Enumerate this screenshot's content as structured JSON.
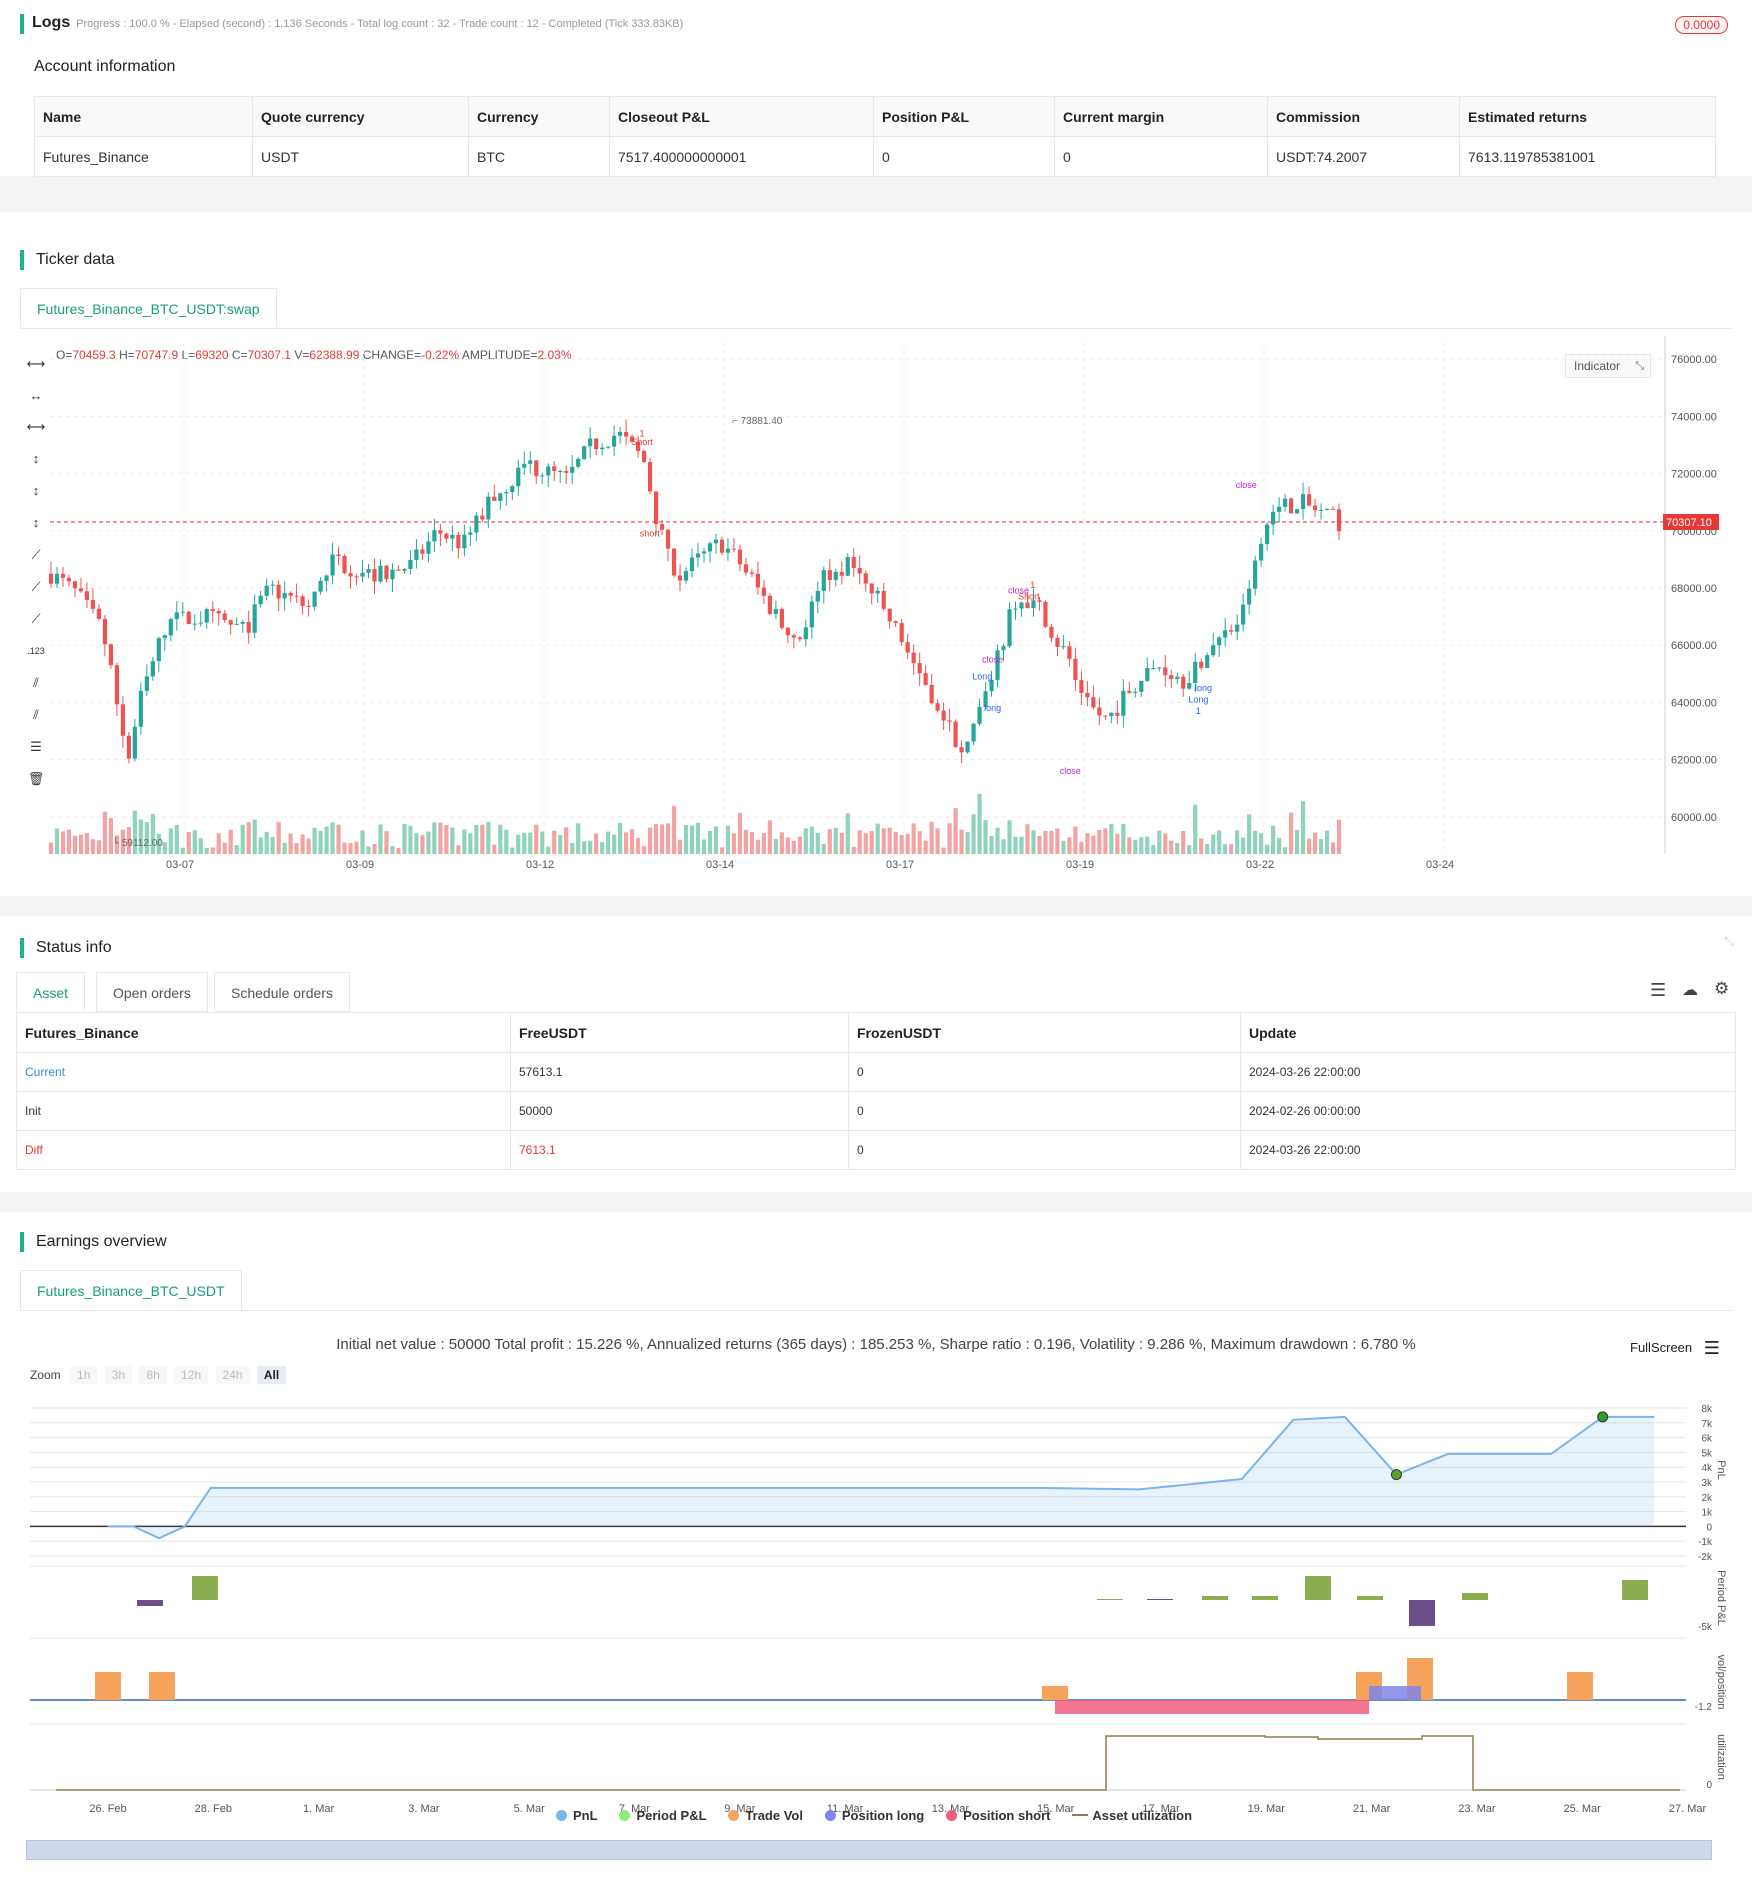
{
  "logs": {
    "title": "Logs",
    "summary": "Progress : 100.0 % - Elapsed (second) : 1.136  Seconds - Total log count : 32 - Trade count : 12 - Completed (Tick 333.83KB)",
    "badge": "0.0000"
  },
  "account": {
    "title": "Account information",
    "headers": [
      "Name",
      "Quote currency",
      "Currency",
      "Closeout P&L",
      "Position P&L",
      "Current margin",
      "Commission",
      "Estimated returns"
    ],
    "row": [
      "Futures_Binance",
      "USDT",
      "BTC",
      "7517.400000000001",
      "0",
      "0",
      "USDT:74.2007",
      "7613.119785381001"
    ]
  },
  "ticker": {
    "title": "Ticker data",
    "tab": "Futures_Binance_BTC_USDT:swap",
    "ohlc": {
      "o_label": "O=",
      "o": "70459.3",
      "h_label": "H=",
      "h": "70747.9",
      "l_label": "L=",
      "l": "69320",
      "c_label": "C=",
      "c": "70307.1",
      "v_label": "V=",
      "v": "62388.99",
      "change_label": "CHANGE=",
      "change": "-0.22%",
      "amp_label": "AMPLITUDE=",
      "amp": "2.03%"
    },
    "indicator_btn": "Indicator",
    "last_price": "70307.10",
    "high_mark": "73881.40",
    "low_mark": "59112.00",
    "colors": {
      "up": "#26a69a",
      "down": "#ef5350",
      "up_vol": "#8fd3bd",
      "down_vol": "#f3a3a3"
    },
    "tools": [
      "horizontal-line-icon",
      "horizontal-ray-icon",
      "horizontal-segment-icon",
      "vertical-line-icon",
      "vertical-ray-icon",
      "vertical-segment-icon",
      "trend-line-icon",
      "ray-icon",
      "segment-icon",
      "price-label-icon",
      "parallel-channel-icon",
      "fib-channel-icon",
      "fib-levels-icon",
      "trash-icon"
    ],
    "chart_data": {
      "type": "candlestick",
      "y_ticks": [
        "76000.00",
        "74000.00",
        "72000.00",
        "70000.00",
        "68000.00",
        "66000.00",
        "64000.00",
        "62000.00",
        "60000.00"
      ],
      "y_range": [
        58700,
        76600
      ],
      "x_ticks": [
        "03-07",
        "03-09",
        "03-12",
        "03-14",
        "03-17",
        "03-19",
        "03-22",
        "03-24"
      ],
      "markers": [
        {
          "text": "1",
          "color": "#e53935",
          "price": 73300,
          "x": 0.459
        },
        {
          "text": "Short",
          "color": "#e53935",
          "price": 73000,
          "x": 0.459
        },
        {
          "text": "short",
          "color": "#e53935",
          "price": 69800,
          "x": 0.465
        },
        {
          "text": "Long",
          "color": "#2962ff",
          "price": 64800,
          "x": 0.722
        },
        {
          "text": "long",
          "color": "#2962ff",
          "price": 63700,
          "x": 0.73
        },
        {
          "text": "close",
          "color": "#c026d3",
          "price": 65400,
          "x": 0.73
        },
        {
          "text": "1",
          "color": "#e53935",
          "price": 68000,
          "x": 0.761
        },
        {
          "text": "close",
          "color": "#c026d3",
          "price": 67800,
          "x": 0.75
        },
        {
          "text": "Short",
          "color": "#e53935",
          "price": 67600,
          "x": 0.758
        },
        {
          "text": "close",
          "color": "#c026d3",
          "price": 61500,
          "x": 0.79
        },
        {
          "text": "long",
          "color": "#2962ff",
          "price": 64400,
          "x": 0.893
        },
        {
          "text": "Long",
          "color": "#2962ff",
          "price": 64000,
          "x": 0.889
        },
        {
          "text": "1",
          "color": "#2962ff",
          "price": 63600,
          "x": 0.889
        },
        {
          "text": "close",
          "color": "#c026d3",
          "price": 71500,
          "x": 0.926
        }
      ]
    }
  },
  "status": {
    "title": "Status info",
    "tabs": [
      "Asset",
      "Open orders",
      "Schedule orders"
    ],
    "headers": [
      "Futures_Binance",
      "FreeUSDT",
      "FrozenUSDT",
      "Update"
    ],
    "rows": [
      {
        "name": "Current",
        "free": "57613.1",
        "frozen": "0",
        "update": "2024-03-26 22:00:00"
      },
      {
        "name": "Init",
        "free": "50000",
        "frozen": "0",
        "update": "2024-02-26 00:00:00"
      },
      {
        "name": "Diff",
        "free": "7613.1",
        "frozen": "0",
        "update": "2024-03-26 22:00:00"
      }
    ]
  },
  "earnings": {
    "title": "Earnings overview",
    "tab": "Futures_Binance_BTC_USDT",
    "summary": "Initial net value : 50000 Total profit : 15.226 %, Annualized returns (365 days) : 185.253 %, Sharpe ratio : 0.196, Volatility : 9.286 %, Maximum drawdown : 6.780 %",
    "fullscreen": "FullScreen",
    "zoom_label": "Zoom",
    "zoom_options": [
      "1h",
      "3h",
      "8h",
      "12h",
      "24h",
      "All"
    ],
    "x_ticks": [
      "26. Feb",
      "28. Feb",
      "1. Mar",
      "3. Mar",
      "5. Mar",
      "7. Mar",
      "9. Mar",
      "11. Mar",
      "13. Mar",
      "15. Mar",
      "17. Mar",
      "19. Mar",
      "21. Mar",
      "23. Mar",
      "25. Mar",
      "27. Mar"
    ],
    "pnl_ticks": [
      "8k",
      "7k",
      "6k",
      "5k",
      "4k",
      "3k",
      "2k",
      "1k",
      "0",
      "-1k",
      "-2k"
    ],
    "axis_titles": [
      "PnL",
      "Period P&L",
      "vol/position",
      "utilization"
    ],
    "period_tick": "-5k",
    "vol_tick": "-1.2",
    "util_tick": "0",
    "legend": [
      {
        "name": "PnL",
        "color": "#7cb5ec"
      },
      {
        "name": "Period P&L",
        "color": "#90ed7d"
      },
      {
        "name": "Trade Vol",
        "color": "#f7a35c"
      },
      {
        "name": "Position long",
        "color": "#8085e9"
      },
      {
        "name": "Position short",
        "color": "#f15c80"
      },
      {
        "name": "Asset utilization",
        "color": "#8d7f4f"
      }
    ],
    "chart_data": {
      "type": "line",
      "x": [
        "2024-02-26",
        "2024-02-26T12",
        "2024-02-27",
        "2024-02-27T12",
        "2024-02-28",
        "2024-03-01",
        "2024-03-10",
        "2024-03-15",
        "2024-03-17",
        "2024-03-19",
        "2024-03-20",
        "2024-03-21",
        "2024-03-22",
        "2024-03-23",
        "2024-03-24",
        "2024-03-25",
        "2024-03-26",
        "2024-03-27"
      ],
      "series": [
        {
          "name": "PnL",
          "values": [
            0,
            0,
            -800,
            0,
            2600,
            2600,
            2600,
            2600,
            2500,
            3200,
            7200,
            7400,
            3500,
            4900,
            4900,
            4900,
            7400,
            7400
          ]
        }
      ],
      "ylim": [
        -2000,
        8000
      ]
    }
  }
}
